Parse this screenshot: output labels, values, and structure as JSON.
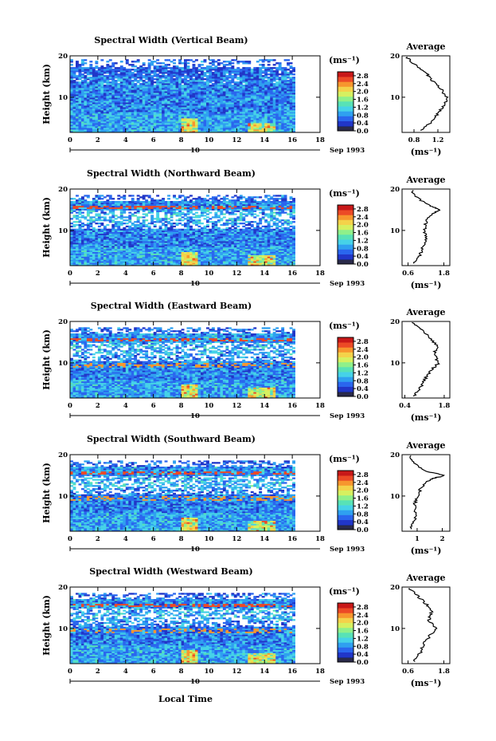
{
  "colors": [
    "#1c2a7a",
    "#2136c8",
    "#2a66ee",
    "#2fa0f0",
    "#46d2e8",
    "#58e2b6",
    "#8ff08a",
    "#d6f060",
    "#f4d24a",
    "#f7962e",
    "#ec4a26",
    "#c81818"
  ],
  "colorbar": {
    "unit": "(ms⁻¹)",
    "ticks": [
      "2.8",
      "2.4",
      "2.0",
      "1.6",
      "1.2",
      "0.8",
      "0.4",
      "0.0"
    ]
  },
  "xaxis": {
    "ticks": [
      "0",
      "2",
      "4",
      "6",
      "8",
      "10",
      "12",
      "14",
      "16",
      "18"
    ],
    "day_label": "10",
    "date_label": "Sep 1993",
    "label": "Local Time"
  },
  "yaxis": {
    "label": "Height (km)",
    "ticks": [
      "20",
      "10"
    ]
  },
  "avg": {
    "title": "Average",
    "unit": "(ms⁻¹)"
  },
  "chart_data": [
    {
      "type": "heatmap",
      "title": "Spectral Width (Vertical Beam)",
      "x_range": [
        0,
        18
      ],
      "y_range": [
        1.5,
        20
      ],
      "data_end_hour": 16.2,
      "color_range": [
        0.0,
        3.0
      ],
      "average_profile": {
        "x_ticks": [
          "0.8",
          "1.2"
        ],
        "x_range": [
          0.6,
          1.4
        ],
        "heights": [
          2,
          4,
          6,
          8,
          10,
          12,
          14,
          16,
          18,
          20
        ],
        "values": [
          0.9,
          1.1,
          1.2,
          1.3,
          1.35,
          1.25,
          1.1,
          1.0,
          0.8,
          0.65
        ]
      }
    },
    {
      "type": "heatmap",
      "title": "Spectral Width (Northward Beam)",
      "x_range": [
        0,
        18
      ],
      "y_range": [
        1.5,
        20
      ],
      "data_end_hour": 16.2,
      "color_range": [
        0.0,
        3.0
      ],
      "average_profile": {
        "x_ticks": [
          "0.6",
          "1.8"
        ],
        "x_range": [
          0.4,
          2.0
        ],
        "heights": [
          2,
          4,
          6,
          8,
          10,
          12,
          14,
          15,
          16,
          18,
          20
        ],
        "values": [
          0.8,
          1.0,
          1.1,
          1.2,
          1.15,
          1.2,
          1.4,
          1.7,
          1.3,
          0.9,
          0.7
        ]
      }
    },
    {
      "type": "heatmap",
      "title": "Spectral Width (Eastward Beam)",
      "x_range": [
        0,
        18
      ],
      "y_range": [
        1.5,
        20
      ],
      "data_end_hour": 16.2,
      "color_range": [
        0.0,
        3.0
      ],
      "average_profile": {
        "x_ticks": [
          "0.4",
          "1.8"
        ],
        "x_range": [
          0.3,
          2.0
        ],
        "heights": [
          2,
          4,
          6,
          8,
          10,
          12,
          14,
          16,
          18,
          20
        ],
        "values": [
          0.75,
          0.95,
          1.1,
          1.3,
          1.6,
          1.45,
          1.55,
          1.3,
          1.0,
          0.6
        ]
      }
    },
    {
      "type": "heatmap",
      "title": "Spectral Width (Southward Beam)",
      "x_range": [
        0,
        18
      ],
      "y_range": [
        1.5,
        20
      ],
      "data_end_hour": 16.2,
      "color_range": [
        0.0,
        3.0
      ],
      "average_profile": {
        "x_ticks": [
          "1",
          "2"
        ],
        "x_range": [
          0.4,
          2.3
        ],
        "heights": [
          2,
          4,
          6,
          8,
          10,
          12,
          14,
          15,
          16,
          18,
          20
        ],
        "values": [
          0.7,
          0.9,
          0.95,
          0.9,
          1.0,
          1.15,
          1.5,
          2.1,
          1.3,
          0.9,
          0.7
        ]
      }
    },
    {
      "type": "heatmap",
      "title": "Spectral Width (Westward Beam)",
      "x_range": [
        0,
        18
      ],
      "y_range": [
        1.5,
        20
      ],
      "data_end_hour": 16.2,
      "color_range": [
        0.0,
        3.0
      ],
      "average_profile": {
        "x_ticks": [
          "0.6",
          "1.8"
        ],
        "x_range": [
          0.4,
          2.0
        ],
        "heights": [
          2,
          4,
          6,
          8,
          10,
          12,
          14,
          16,
          18,
          20
        ],
        "values": [
          0.8,
          1.0,
          1.1,
          1.3,
          1.55,
          1.3,
          1.4,
          1.2,
          0.9,
          0.6
        ]
      }
    }
  ]
}
